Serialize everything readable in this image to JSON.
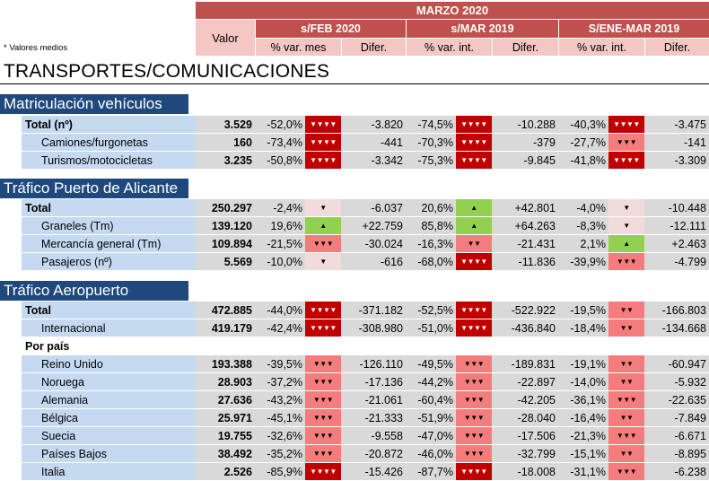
{
  "header": {
    "month": "MARZO 2020",
    "valor": "Valor",
    "groups": [
      "s/FEB 2020",
      "s/MAR 2019",
      "S/ENE-MAR 2019"
    ],
    "sublabels": [
      "% var. mes",
      "Difer.",
      "% var. int.",
      "Difer.",
      "% var. int.",
      "Difer."
    ],
    "note": "* Valores medios"
  },
  "title": "TRANSPORTES/COMUNICACIONES",
  "arrows": {
    "dn4": "▼▼▼▼",
    "dn3": "▼▼▼",
    "dn2": "▼▼",
    "dn1": "▼",
    "up1": "▲"
  },
  "colors": {
    "header_red": "#c0504d",
    "header_pink": "#f2c7c4",
    "section_blue": "#1f497d",
    "label_blue": "#c5d9f1",
    "value_gray": "#d9d9d9",
    "arrow_dark_red": "#c00000",
    "arrow_light_red": "#f47c7c",
    "arrow_pink": "#f2dcdb",
    "arrow_green": "#92d050"
  },
  "sections": [
    {
      "title": "Matriculación vehículos",
      "rows": [
        {
          "label": "Total (nº)",
          "valor": "3.529",
          "p1": "-52,0%",
          "a1": "▼▼▼▼",
          "d1": "-3.820",
          "p2": "-74,5%",
          "a2": "▼▼▼▼",
          "d2": "-10.288",
          "p3": "-40,3%",
          "a3": "▼▼▼▼",
          "d3": "-3.475"
        },
        {
          "label": "Camiones/furgonetas",
          "valor": "160",
          "p1": "-73,4%",
          "a1": "▼▼▼▼",
          "d1": "-441",
          "p2": "-70,3%",
          "a2": "▼▼▼▼",
          "d2": "-379",
          "p3": "-27,7%",
          "a3": "▼▼▼",
          "d3": "-141"
        },
        {
          "label": "Turismos/motocicletas",
          "valor": "3.235",
          "p1": "-50,8%",
          "a1": "▼▼▼▼",
          "d1": "-3.342",
          "p2": "-75,3%",
          "a2": "▼▼▼▼",
          "d2": "-9.845",
          "p3": "-41,8%",
          "a3": "▼▼▼▼",
          "d3": "-3.309"
        }
      ]
    },
    {
      "title": "Tráfico Puerto de Alicante",
      "rows": [
        {
          "label": "Total",
          "valor": "250.297",
          "p1": "-2,4%",
          "a1": "▼",
          "d1": "-6.037",
          "p2": "20,6%",
          "a2": "▲",
          "d2": "+42.801",
          "p3": "-4,0%",
          "a3": "▼",
          "d3": "-10.448"
        },
        {
          "label": "Graneles (Tm)",
          "valor": "139.120",
          "p1": "19,6%",
          "a1": "▲",
          "d1": "+22.759",
          "p2": "85,8%",
          "a2": "▲",
          "d2": "+64.263",
          "p3": "-8,3%",
          "a3": "▼",
          "d3": "-12.111"
        },
        {
          "label": "Mercancía general (Tm)",
          "valor": "109.894",
          "p1": "-21,5%",
          "a1": "▼▼▼",
          "d1": "-30.024",
          "p2": "-16,3%",
          "a2": "▼▼",
          "d2": "-21.431",
          "p3": "2,1%",
          "a3": "▲",
          "d3": "+2.463"
        },
        {
          "label": "Pasajeros (nº)",
          "valor": "5.569",
          "p1": "-10,0%",
          "a1": "▼",
          "d1": "-616",
          "p2": "-68,0%",
          "a2": "▼▼▼▼",
          "d2": "-11.836",
          "p3": "-39,9%",
          "a3": "▼▼▼",
          "d3": "-4.799"
        }
      ]
    },
    {
      "title": "Tráfico Aeropuerto",
      "rows": [
        {
          "label": "Total",
          "valor": "472.885",
          "p1": "-44,0%",
          "a1": "▼▼▼▼",
          "d1": "-371.182",
          "p2": "-52,5%",
          "a2": "▼▼▼▼",
          "d2": "-522.922",
          "p3": "-19,5%",
          "a3": "▼▼",
          "d3": "-166.803"
        },
        {
          "label": "Internacional",
          "valor": "419.179",
          "p1": "-42,4%",
          "a1": "▼▼▼▼",
          "d1": "-308.980",
          "p2": "-51,0%",
          "a2": "▼▼▼▼",
          "d2": "-436.840",
          "p3": "-18,4%",
          "a3": "▼▼",
          "d3": "-134.668"
        }
      ],
      "bypais_label": "Por país",
      "countries": [
        {
          "label": "Reino Unido",
          "valor": "193.388",
          "p1": "-39,5%",
          "a1": "▼▼▼",
          "d1": "-126.110",
          "p2": "-49,5%",
          "a2": "▼▼▼",
          "d2": "-189.831",
          "p3": "-19,1%",
          "a3": "▼▼",
          "d3": "-60.947"
        },
        {
          "label": "Noruega",
          "valor": "28.903",
          "p1": "-37,2%",
          "a1": "▼▼▼",
          "d1": "-17.136",
          "p2": "-44,2%",
          "a2": "▼▼▼",
          "d2": "-22.897",
          "p3": "-14,0%",
          "a3": "▼▼",
          "d3": "-5.932"
        },
        {
          "label": "Alemania",
          "valor": "27.636",
          "p1": "-43,2%",
          "a1": "▼▼▼",
          "d1": "-21.061",
          "p2": "-60,4%",
          "a2": "▼▼▼",
          "d2": "-42.205",
          "p3": "-36,1%",
          "a3": "▼▼▼",
          "d3": "-22.635"
        },
        {
          "label": "Bélgica",
          "valor": "25.971",
          "p1": "-45,1%",
          "a1": "▼▼▼",
          "d1": "-21.333",
          "p2": "-51,9%",
          "a2": "▼▼▼",
          "d2": "-28.040",
          "p3": "-16,4%",
          "a3": "▼▼",
          "d3": "-7.849"
        },
        {
          "label": "Suecia",
          "valor": "19.755",
          "p1": "-32,6%",
          "a1": "▼▼▼",
          "d1": "-9.558",
          "p2": "-47,0%",
          "a2": "▼▼▼",
          "d2": "-17.506",
          "p3": "-21,3%",
          "a3": "▼▼▼",
          "d3": "-6.671"
        },
        {
          "label": "Países Bajos",
          "valor": "38.492",
          "p1": "-35,2%",
          "a1": "▼▼▼",
          "d1": "-20.872",
          "p2": "-46,0%",
          "a2": "▼▼▼",
          "d2": "-32.799",
          "p3": "-15,1%",
          "a3": "▼▼",
          "d3": "-8.895"
        },
        {
          "label": "Italia",
          "valor": "2.526",
          "p1": "-85,9%",
          "a1": "▼▼▼▼",
          "d1": "-15.426",
          "p2": "-87,7%",
          "a2": "▼▼▼▼",
          "d2": "-18.008",
          "p3": "-31,1%",
          "a3": "▼▼▼",
          "d3": "-6.238"
        }
      ]
    }
  ]
}
